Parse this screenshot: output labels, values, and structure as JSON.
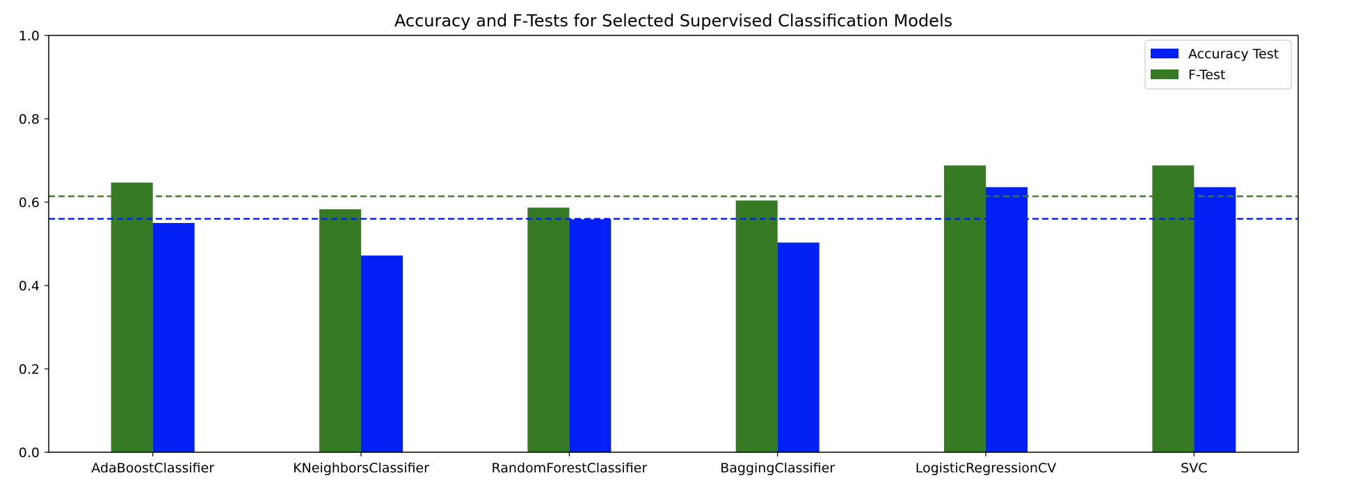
{
  "chart_data": {
    "type": "bar",
    "title": "Accuracy and F-Tests for Selected Supervised Classification Models",
    "xlabel": "",
    "ylabel": "",
    "ylim": [
      0.0,
      1.0
    ],
    "yticks": [
      "0.0",
      "0.2",
      "0.4",
      "0.6",
      "0.8",
      "1.0"
    ],
    "categories": [
      "AdaBoostClassifier",
      "KNeighborsClassifier",
      "RandomForestClassifier",
      "BaggingClassifier",
      "LogisticRegressionCV",
      "SVC"
    ],
    "series": [
      {
        "name": "F-Test",
        "color": "#367a24",
        "values": [
          0.647,
          0.583,
          0.587,
          0.604,
          0.688,
          0.688
        ]
      },
      {
        "name": "Accuracy Test",
        "color": "#0020f5",
        "values": [
          0.55,
          0.472,
          0.559,
          0.503,
          0.636,
          0.636
        ]
      }
    ],
    "reference_lines": [
      {
        "series": "F-Test",
        "value": 0.614,
        "color": "#367a24",
        "style": "dashed"
      },
      {
        "series": "Accuracy Test",
        "value": 0.56,
        "color": "#0020f5",
        "style": "dashed"
      }
    ],
    "legend": {
      "placement": "top-right",
      "entries": [
        {
          "label": "Accuracy Test",
          "color": "#0020f5"
        },
        {
          "label": "F-Test",
          "color": "#367a24"
        }
      ]
    },
    "grid": false
  }
}
